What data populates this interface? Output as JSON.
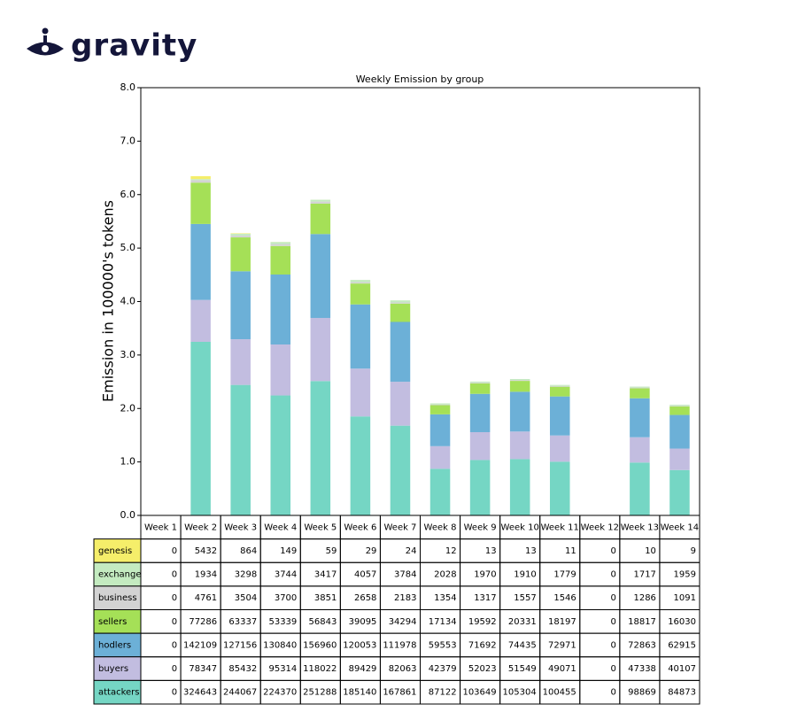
{
  "logo": "gravity",
  "chart_data": {
    "type": "stacked_bar",
    "title": "Weekly Emission by group",
    "y_label": "Emission in 100000's tokens",
    "categories": [
      "Week 1",
      "Week 2",
      "Week 3",
      "Week 4",
      "Week 5",
      "Week 6",
      "Week 7",
      "Week 8",
      "Week 9",
      "Week 10",
      "Week 11",
      "Week 12",
      "Week 13",
      "Week 14"
    ],
    "ylim": [
      0,
      8
    ],
    "yticks": [
      {
        "value": 0,
        "label": "0.0"
      },
      {
        "value": 1,
        "label": "1.0"
      },
      {
        "value": 2,
        "label": "2.0"
      },
      {
        "value": 3,
        "label": "3.0"
      },
      {
        "value": 4,
        "label": "4.0"
      },
      {
        "value": 5,
        "label": "5.0"
      },
      {
        "value": 6,
        "label": "6.0"
      },
      {
        "value": 7,
        "label": "7.0"
      },
      {
        "value": 8,
        "label": "8.0"
      }
    ],
    "series": [
      {
        "name": "genesis",
        "color": "#f5ee6a",
        "values": [
          0,
          0.05432,
          0.00864,
          0.00149,
          0.00059,
          0.00029,
          0.00024,
          0.00012,
          0.00013,
          0.00013,
          0.00011,
          0,
          0.0001,
          9e-05
        ],
        "value_labels": [
          "0",
          "5432",
          "864",
          "149",
          "59",
          "29",
          "24",
          "12",
          "13",
          "13",
          "11",
          "0",
          "10",
          "9"
        ]
      },
      {
        "name": "exchange",
        "color": "#c4ebc0",
        "values": [
          0,
          0.01934,
          0.03298,
          0.03744,
          0.03417,
          0.04057,
          0.03784,
          0.02028,
          0.0197,
          0.0191,
          0.01779,
          0,
          0.01717,
          0.01959
        ],
        "value_labels": [
          "0",
          "1934",
          "3298",
          "3744",
          "3417",
          "4057",
          "3784",
          "2028",
          "1970",
          "1910",
          "1779",
          "0",
          "1717",
          "1959"
        ]
      },
      {
        "name": "business",
        "color": "#d3d3d3",
        "values": [
          0,
          0.04761,
          0.03504,
          0.037,
          0.03851,
          0.02658,
          0.02183,
          0.01354,
          0.01317,
          0.01557,
          0.01546,
          0,
          0.01286,
          0.01091
        ],
        "value_labels": [
          "0",
          "4761",
          "3504",
          "3700",
          "3851",
          "2658",
          "2183",
          "1354",
          "1317",
          "1557",
          "1546",
          "0",
          "1286",
          "1091"
        ]
      },
      {
        "name": "sellers",
        "color": "#a5e057",
        "values": [
          0,
          0.77286,
          0.63337,
          0.53339,
          0.56843,
          0.39095,
          0.34294,
          0.17134,
          0.19592,
          0.20331,
          0.18197,
          0,
          0.18817,
          0.1603
        ],
        "value_labels": [
          "0",
          "77286",
          "63337",
          "53339",
          "56843",
          "39095",
          "34294",
          "17134",
          "19592",
          "20331",
          "18197",
          "0",
          "18817",
          "16030"
        ]
      },
      {
        "name": "hodlers",
        "color": "#6cb0d7",
        "values": [
          0,
          1.42109,
          1.27156,
          1.3084,
          1.5696,
          1.20053,
          1.11978,
          0.59553,
          0.71692,
          0.74435,
          0.72971,
          0,
          0.72863,
          0.62915
        ],
        "value_labels": [
          "0",
          "142109",
          "127156",
          "130840",
          "156960",
          "120053",
          "111978",
          "59553",
          "71692",
          "74435",
          "72971",
          "0",
          "72863",
          "62915"
        ]
      },
      {
        "name": "buyers",
        "color": "#c2bde0",
        "values": [
          0,
          0.78347,
          0.85432,
          0.95314,
          1.18022,
          0.89429,
          0.82063,
          0.42379,
          0.52023,
          0.51549,
          0.49071,
          0,
          0.47338,
          0.40107
        ],
        "value_labels": [
          "0",
          "78347",
          "85432",
          "95314",
          "118022",
          "89429",
          "82063",
          "42379",
          "52023",
          "51549",
          "49071",
          "0",
          "47338",
          "40107"
        ]
      },
      {
        "name": "attackers",
        "color": "#75d6c4",
        "values": [
          0,
          3.24643,
          2.44067,
          2.2437,
          2.51288,
          1.8514,
          1.67861,
          0.87122,
          1.03649,
          1.05304,
          1.00455,
          0,
          0.98869,
          0.84873
        ],
        "value_labels": [
          "0",
          "324643",
          "244067",
          "224370",
          "251288",
          "185140",
          "167861",
          "87122",
          "103649",
          "105304",
          "100455",
          "0",
          "98869",
          "84873"
        ]
      }
    ]
  }
}
